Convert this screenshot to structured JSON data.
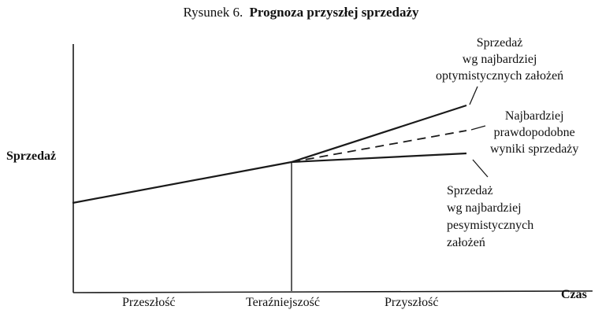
{
  "figure": {
    "number": "Rysunek 6.",
    "title": "Prognoza przyszłej sprzedaży"
  },
  "axes": {
    "y_label": "Sprzedaż",
    "x_label": "Czas"
  },
  "periods": {
    "past": "Przeszłość",
    "present": "Teraźniejszość",
    "future": "Przyszłość"
  },
  "scenarios": {
    "optimistic": {
      "line1": "Sprzedaż",
      "line2": "wg najbardziej",
      "line3": "optymistycznych założeń",
      "line_style": "solid"
    },
    "probable": {
      "line1": "Najbardziej",
      "line2": "prawdopodobne",
      "line3": "wyniki sprzedaży",
      "line_style": "dashed"
    },
    "pessimistic": {
      "line1": "Sprzedaż",
      "line2": "wg najbardziej",
      "line3": "pesymistycznych",
      "line4": "założeń",
      "line_style": "solid"
    }
  },
  "colors": {
    "ink": "#1a1a1a",
    "background": "#ffffff"
  }
}
